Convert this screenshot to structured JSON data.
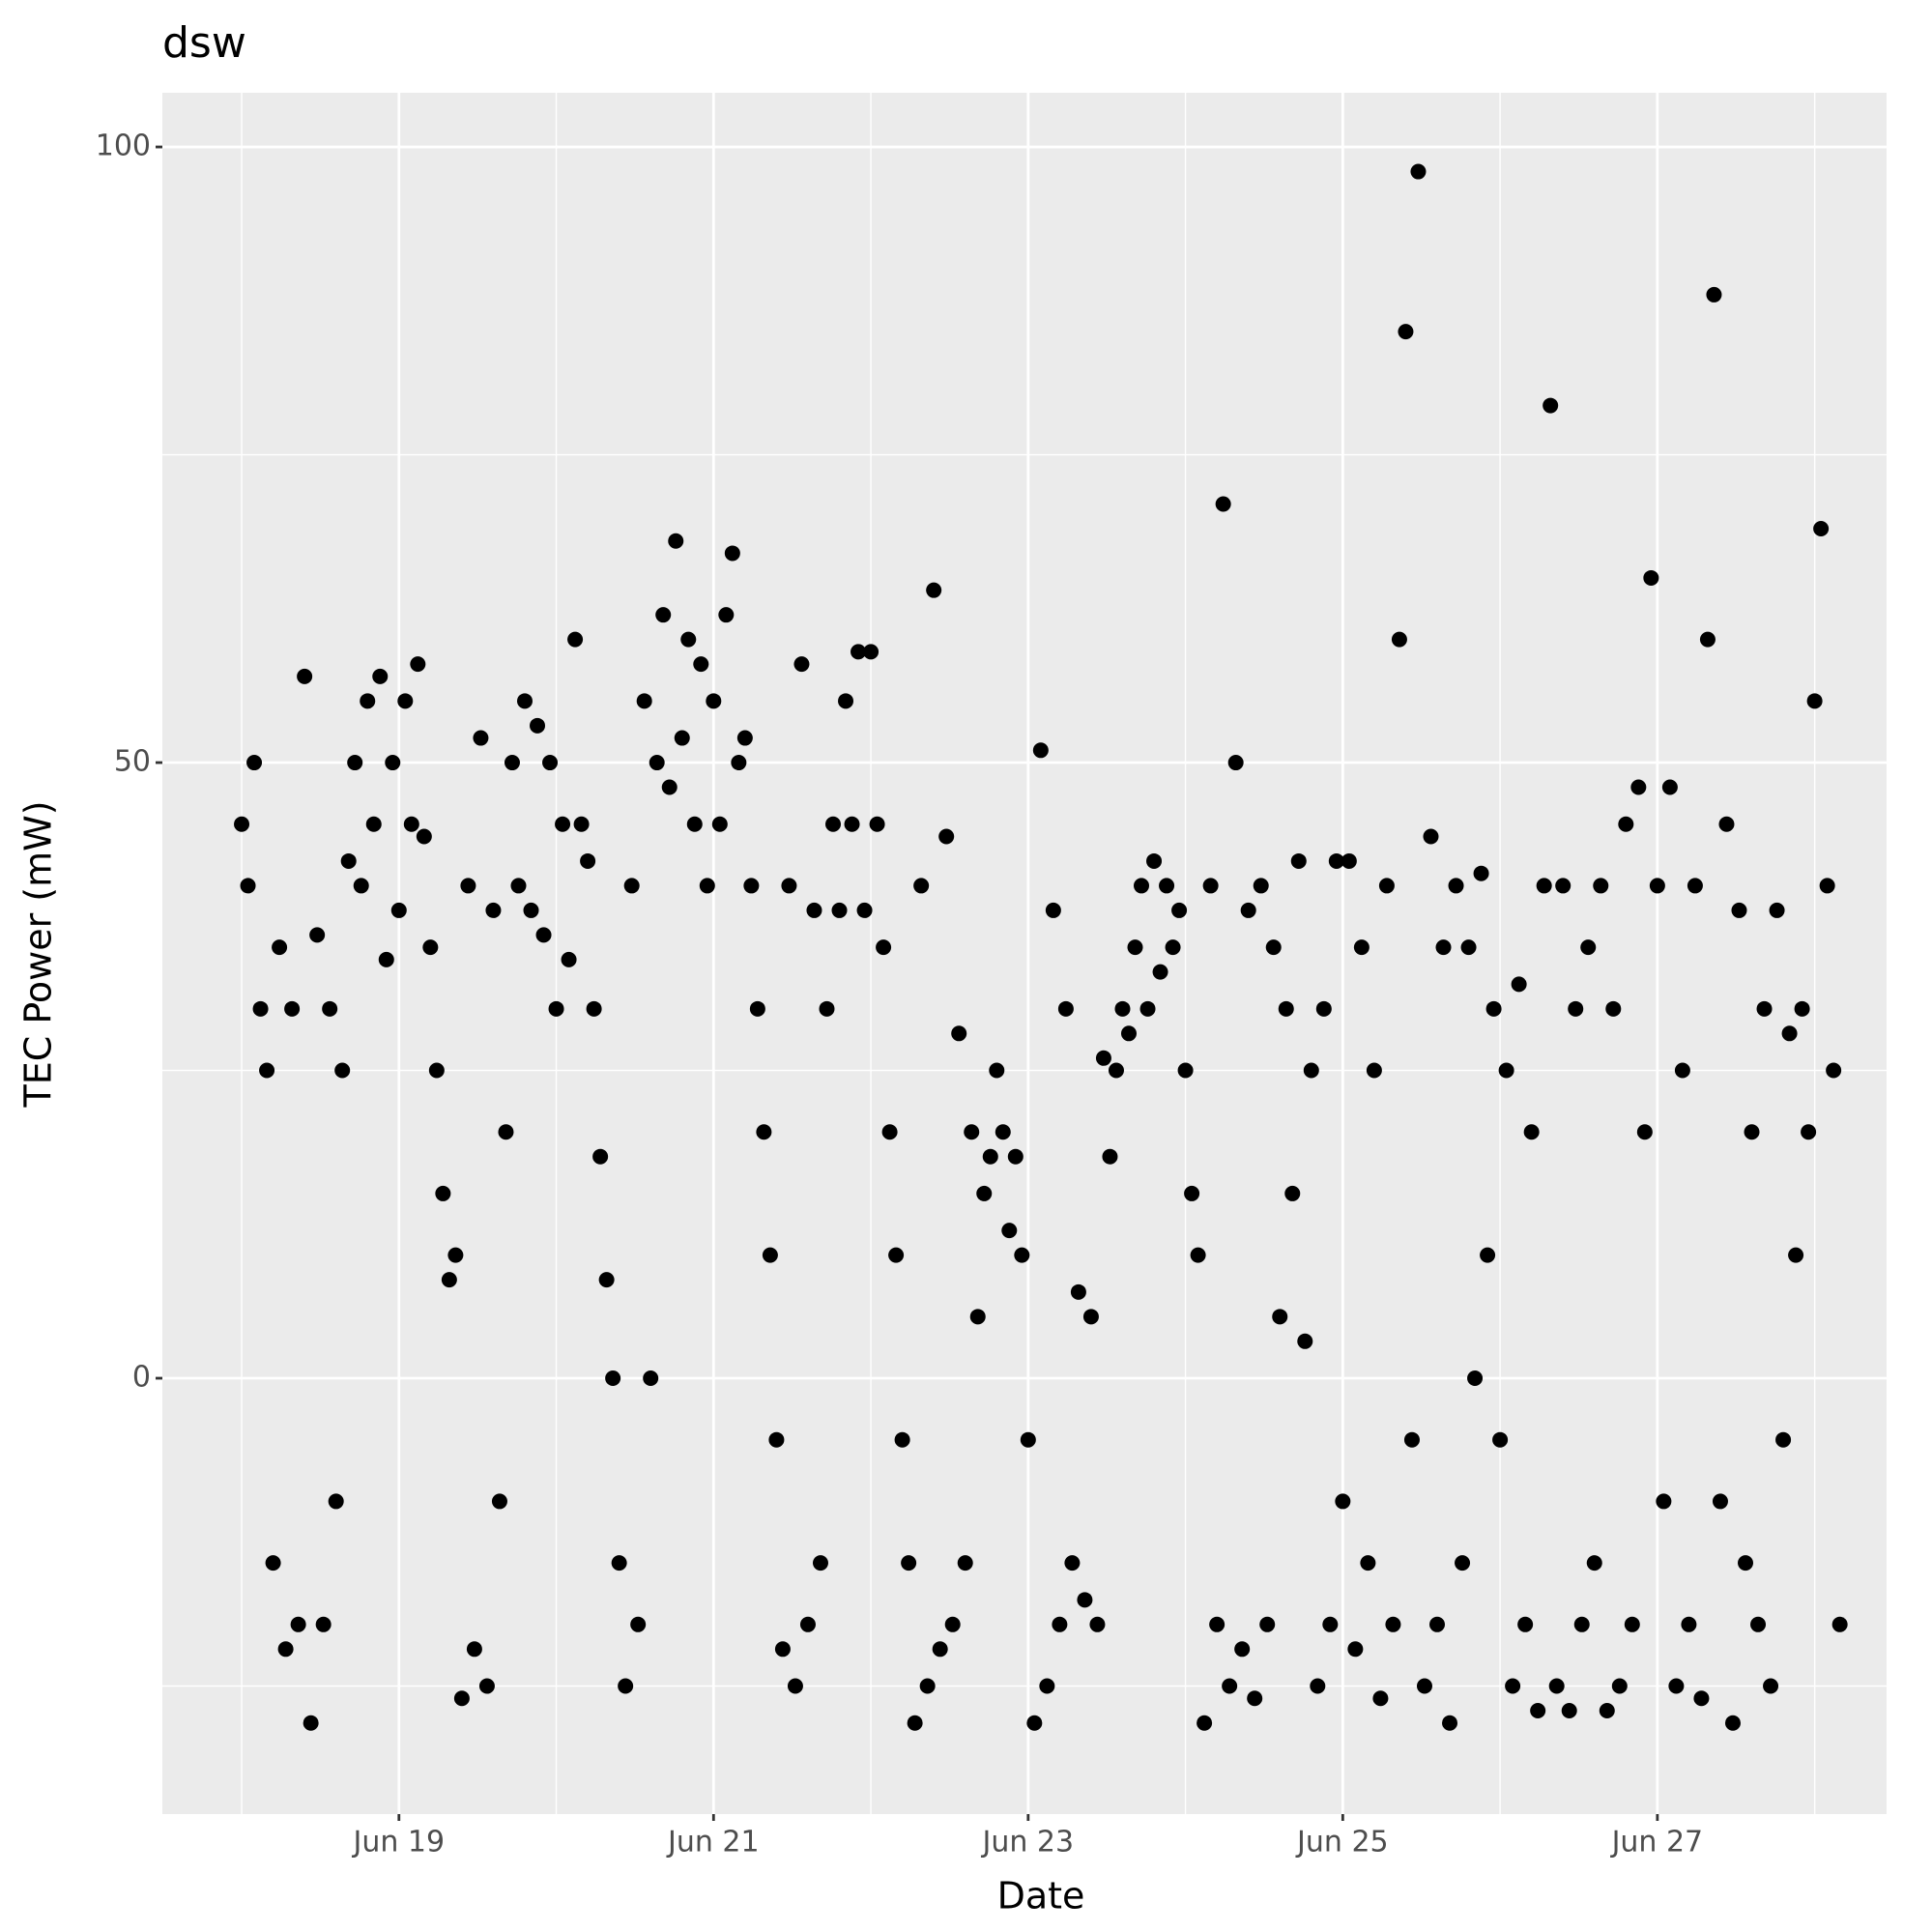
{
  "chart_data": {
    "type": "scatter",
    "title": "dsw",
    "x_label": "Date",
    "y_label": "TEC Power (mW)",
    "x": [
      18,
      18.04,
      18.08,
      18.12,
      18.16,
      18.2,
      18.24,
      18.28,
      18.32,
      18.36,
      18.4,
      18.44,
      18.48,
      18.52,
      18.56,
      18.6,
      18.64,
      18.68,
      18.72,
      18.76,
      18.8,
      18.84,
      18.88,
      18.92,
      18.96,
      19,
      19.04,
      19.08,
      19.12,
      19.16,
      19.2,
      19.24,
      19.28,
      19.32,
      19.36,
      19.4,
      19.44,
      19.48,
      19.52,
      19.56,
      19.6,
      19.64,
      19.68,
      19.72,
      19.76,
      19.8,
      19.84,
      19.88,
      19.92,
      19.96,
      20,
      20.04,
      20.08,
      20.12,
      20.16,
      20.2,
      20.24,
      20.28,
      20.32,
      20.36,
      20.4,
      20.44,
      20.48,
      20.52,
      20.56,
      20.6,
      20.64,
      20.68,
      20.72,
      20.76,
      20.8,
      20.84,
      20.88,
      20.92,
      20.96,
      21,
      21.04,
      21.08,
      21.12,
      21.16,
      21.2,
      21.24,
      21.28,
      21.32,
      21.36,
      21.4,
      21.44,
      21.48,
      21.52,
      21.56,
      21.6,
      21.64,
      21.68,
      21.72,
      21.76,
      21.8,
      21.84,
      21.88,
      21.92,
      21.96,
      22,
      22.04,
      22.08,
      22.12,
      22.16,
      22.2,
      22.24,
      22.28,
      22.32,
      22.36,
      22.4,
      22.44,
      22.48,
      22.52,
      22.56,
      22.6,
      22.64,
      22.68,
      22.72,
      22.76,
      22.8,
      22.84,
      22.88,
      22.92,
      22.96,
      23,
      23.04,
      23.08,
      23.12,
      23.16,
      23.2,
      23.24,
      23.28,
      23.32,
      23.36,
      23.4,
      23.44,
      23.48,
      23.52,
      23.56,
      23.6,
      23.64,
      23.68,
      23.72,
      23.76,
      23.8,
      23.84,
      23.88,
      23.92,
      23.96,
      24,
      24.04,
      24.08,
      24.12,
      24.16,
      24.2,
      24.24,
      24.28,
      24.32,
      24.36,
      24.4,
      24.44,
      24.48,
      24.52,
      24.56,
      24.6,
      24.64,
      24.68,
      24.72,
      24.76,
      24.8,
      24.84,
      24.88,
      24.92,
      24.96,
      25,
      25.04,
      25.08,
      25.12,
      25.16,
      25.2,
      25.24,
      25.28,
      25.32,
      25.36,
      25.4,
      25.44,
      25.48,
      25.52,
      25.56,
      25.6,
      25.64,
      25.68,
      25.72,
      25.76,
      25.8,
      25.84,
      25.88,
      25.92,
      25.96,
      26,
      26.04,
      26.08,
      26.12,
      26.16,
      26.2,
      26.24,
      26.28,
      26.32,
      26.36,
      26.4,
      26.44,
      26.48,
      26.52,
      26.56,
      26.6,
      26.64,
      26.68,
      26.72,
      26.76,
      26.8,
      26.84,
      26.88,
      26.92,
      26.96,
      27,
      27.04,
      27.08,
      27.12,
      27.16,
      27.2,
      27.24,
      27.28,
      27.32,
      27.36,
      27.4,
      27.44,
      27.48,
      27.52,
      27.56,
      27.6,
      27.64,
      27.68,
      27.72,
      27.76,
      27.8,
      27.84,
      27.88,
      27.92,
      27.96,
      28,
      28.04,
      28.08,
      28.12,
      28.16
    ],
    "values": [
      45,
      40,
      50,
      30,
      25,
      -15,
      35,
      -22,
      30,
      -20,
      57,
      -28,
      36,
      -20,
      30,
      -10,
      25,
      42,
      50,
      40,
      55,
      45,
      57,
      34,
      50,
      38,
      55,
      45,
      58,
      44,
      35,
      25,
      15,
      8,
      10,
      -26,
      40,
      -22,
      52,
      -25,
      38,
      -10,
      20,
      50,
      40,
      55,
      38,
      53,
      36,
      50,
      30,
      45,
      34,
      60,
      45,
      42,
      30,
      18,
      8,
      0,
      -15,
      -25,
      40,
      -20,
      55,
      0,
      50,
      62,
      48,
      68,
      52,
      60,
      45,
      58,
      40,
      55,
      45,
      62,
      67,
      50,
      52,
      40,
      30,
      20,
      10,
      -5,
      -22,
      40,
      -25,
      58,
      -20,
      38,
      -15,
      30,
      45,
      38,
      55,
      45,
      59,
      38,
      59,
      45,
      35,
      20,
      10,
      -5,
      -15,
      -28,
      40,
      -25,
      64,
      -22,
      44,
      -20,
      28,
      -15,
      20,
      5,
      15,
      18,
      25,
      20,
      12,
      18,
      10,
      -5,
      -28,
      51,
      -25,
      38,
      -20,
      30,
      -15,
      7,
      -18,
      5,
      -20,
      26,
      18,
      25,
      30,
      28,
      35,
      40,
      30,
      42,
      33,
      40,
      35,
      38,
      25,
      15,
      10,
      -28,
      40,
      -20,
      71,
      -25,
      50,
      -22,
      38,
      -26,
      40,
      -20,
      35,
      5,
      30,
      15,
      42,
      3,
      25,
      -25,
      30,
      -20,
      42,
      -10,
      42,
      -22,
      35,
      -15,
      25,
      -26,
      40,
      -20,
      60,
      85,
      -5,
      98,
      -25,
      44,
      -20,
      35,
      -28,
      40,
      -15,
      35,
      0,
      41,
      10,
      30,
      -5,
      25,
      -25,
      32,
      -20,
      20,
      -27,
      40,
      79,
      -25,
      40,
      -27,
      30,
      -20,
      35,
      -15,
      40,
      -27,
      30,
      -25,
      45,
      -20,
      48,
      20,
      65,
      40,
      -10,
      48,
      -25,
      25,
      -20,
      40,
      -26,
      60,
      88,
      -10,
      45,
      -28,
      38,
      -15,
      20,
      -20,
      30,
      -25,
      38,
      -5,
      28,
      10,
      30,
      20,
      55,
      69,
      40,
      25,
      -20
    ],
    "color": "#000000",
    "xlim": [
      17.496,
      28.457
    ],
    "ylim": [
      -35.4,
      104.4
    ],
    "xticks": [
      {
        "value": 19,
        "label": "Jun 19"
      },
      {
        "value": 21,
        "label": "Jun 21"
      },
      {
        "value": 23,
        "label": "Jun 23"
      },
      {
        "value": 25,
        "label": "Jun 25"
      },
      {
        "value": 27,
        "label": "Jun 27"
      }
    ],
    "yticks": [
      0,
      50,
      100
    ],
    "grid": true,
    "minor_grid": true
  }
}
